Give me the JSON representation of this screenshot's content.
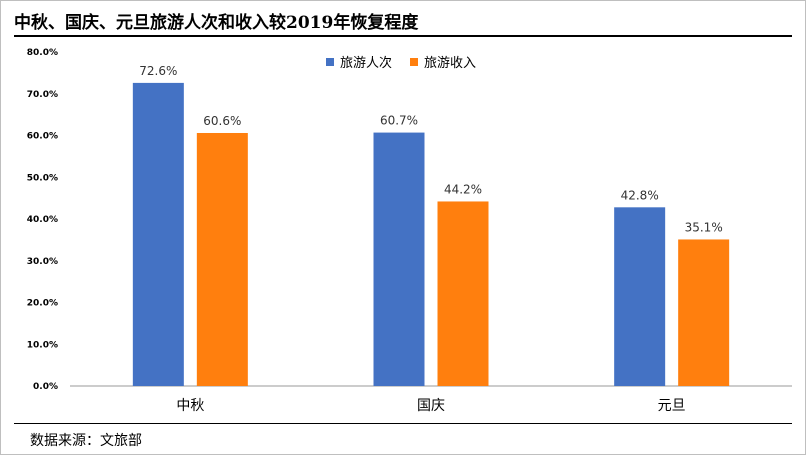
{
  "title": "中秋、国庆、元旦旅游人次和收入较2019年恢复程度",
  "source": "数据来源：文旅部",
  "colors": {
    "series1": "#4472C4",
    "series2": "#FF7F0E"
  },
  "chart_data": {
    "type": "bar",
    "title": "中秋、国庆、元旦旅游人次和收入较2019年恢复程度",
    "categories": [
      "中秋",
      "国庆",
      "元旦"
    ],
    "series": [
      {
        "name": "旅游人次",
        "values": [
          72.6,
          60.7,
          42.8
        ],
        "labels": [
          "72.6%",
          "60.7%",
          "42.8%"
        ]
      },
      {
        "name": "旅游收入",
        "values": [
          60.6,
          44.2,
          35.1
        ],
        "labels": [
          "60.6%",
          "44.2%",
          "35.1%"
        ]
      }
    ],
    "ylim": [
      0,
      80
    ],
    "yticks": [
      "0.0%",
      "10.0%",
      "20.0%",
      "30.0%",
      "40.0%",
      "50.0%",
      "60.0%",
      "70.0%",
      "80.0%"
    ],
    "xlabel": "",
    "ylabel": "",
    "grid": false,
    "legend_position": "top-center"
  }
}
